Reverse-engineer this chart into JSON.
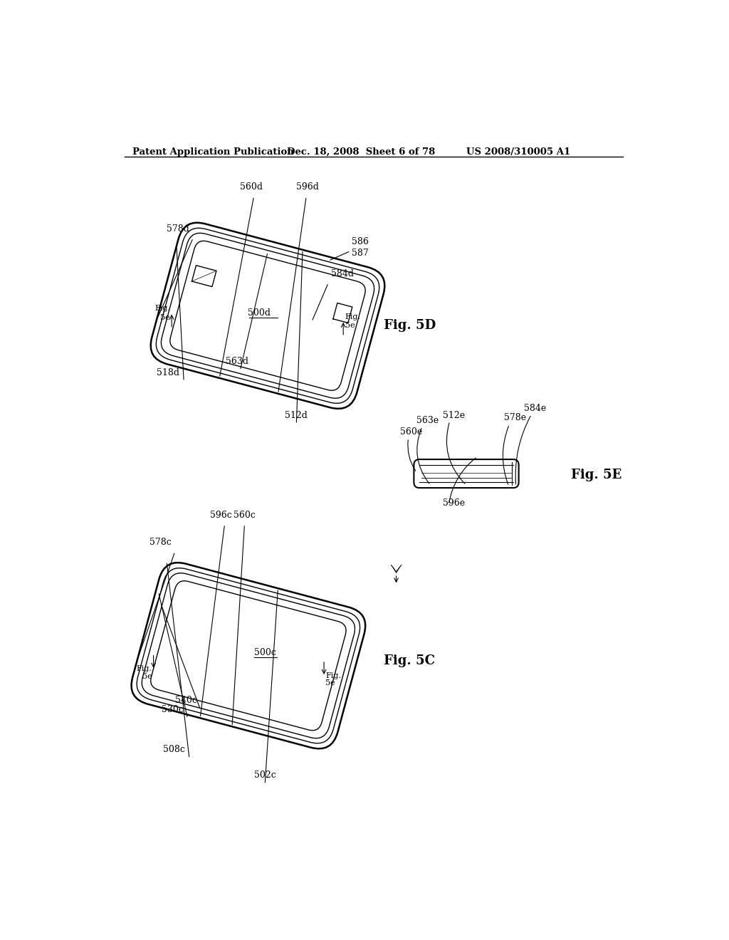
{
  "bg_color": "#ffffff",
  "header_left": "Patent Application Publication",
  "header_mid": "Dec. 18, 2008  Sheet 6 of 78",
  "header_right": "US 2008/310005 A1",
  "fig5d_label": "Fig. 5D",
  "fig5c_label": "Fig. 5C",
  "fig5e_label": "Fig. 5E",
  "line_color": "#000000"
}
